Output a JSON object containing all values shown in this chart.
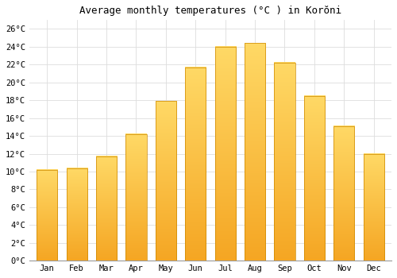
{
  "title": "Average monthly temperatures (°C ) in Korŏni",
  "months": [
    "Jan",
    "Feb",
    "Mar",
    "Apr",
    "May",
    "Jun",
    "Jul",
    "Aug",
    "Sep",
    "Oct",
    "Nov",
    "Dec"
  ],
  "temperatures": [
    10.2,
    10.4,
    11.7,
    14.2,
    17.9,
    21.7,
    24.0,
    24.4,
    22.2,
    18.5,
    15.1,
    12.0
  ],
  "bar_color_bottom": "#F5A623",
  "bar_color_top": "#FFD966",
  "bar_edge_color": "#CC8800",
  "background_color": "#ffffff",
  "grid_color": "#dddddd",
  "ylim": [
    0,
    27
  ],
  "yticks": [
    0,
    2,
    4,
    6,
    8,
    10,
    12,
    14,
    16,
    18,
    20,
    22,
    24,
    26
  ],
  "title_fontsize": 9,
  "tick_fontsize": 7.5,
  "font_family": "monospace"
}
